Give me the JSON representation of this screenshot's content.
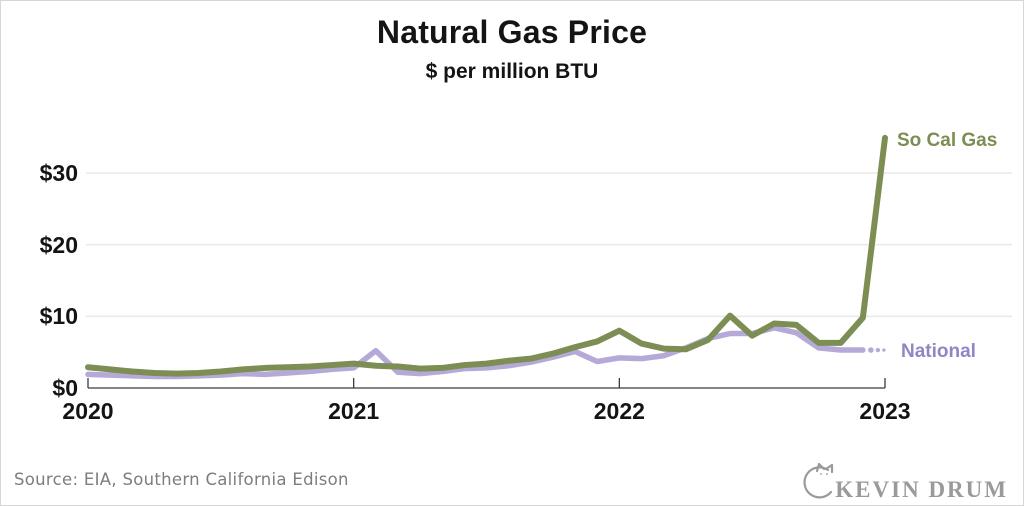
{
  "header": {
    "title": "Natural Gas Price",
    "subtitle": "$ per million BTU"
  },
  "chart_data": {
    "type": "line",
    "title": "Natural Gas Price",
    "subtitle": "$ per million BTU",
    "x_unit": "month",
    "x_start": "2020-01",
    "x_end": "2023-01",
    "x_tick_labels": [
      "2020",
      "2021",
      "2022",
      "2023"
    ],
    "y_ticks": [
      0,
      10,
      20,
      30
    ],
    "y_tick_labels": [
      "$0",
      "$10",
      "$20",
      "$30"
    ],
    "ylim": [
      0,
      36
    ],
    "grid": "horizontal-light",
    "legend_position": "right-of-line-ends",
    "series": [
      {
        "name": "National",
        "color": "#b5a9d8",
        "label_color": "#9285c5",
        "style": "solid-with-dotted-tail",
        "values": [
          1.9,
          1.8,
          1.7,
          1.6,
          1.6,
          1.7,
          1.8,
          2.0,
          1.9,
          2.1,
          2.3,
          2.6,
          2.8,
          5.2,
          2.2,
          2.0,
          2.3,
          2.7,
          2.8,
          3.1,
          3.6,
          4.3,
          5.1,
          3.7,
          4.2,
          4.1,
          4.5,
          5.6,
          6.9,
          7.6,
          7.6,
          8.4,
          7.7,
          5.6,
          5.3,
          5.3
        ]
      },
      {
        "name": "So Cal Gas",
        "color": "#7c8e53",
        "label_color": "#7c8e53",
        "style": "solid",
        "values": [
          2.9,
          2.6,
          2.3,
          2.1,
          2.0,
          2.1,
          2.3,
          2.6,
          2.8,
          2.9,
          3.0,
          3.2,
          3.4,
          3.1,
          3.0,
          2.7,
          2.8,
          3.2,
          3.4,
          3.8,
          4.1,
          4.8,
          5.7,
          6.5,
          8.0,
          6.2,
          5.5,
          5.4,
          6.7,
          10.1,
          7.3,
          9.0,
          8.8,
          6.3,
          6.3,
          9.8,
          34.9
        ]
      }
    ]
  },
  "footer": {
    "source": "Source: EIA, Southern California Edison",
    "logo_text": "KEVIN DRUM",
    "logo_icon": "cat-icon"
  }
}
